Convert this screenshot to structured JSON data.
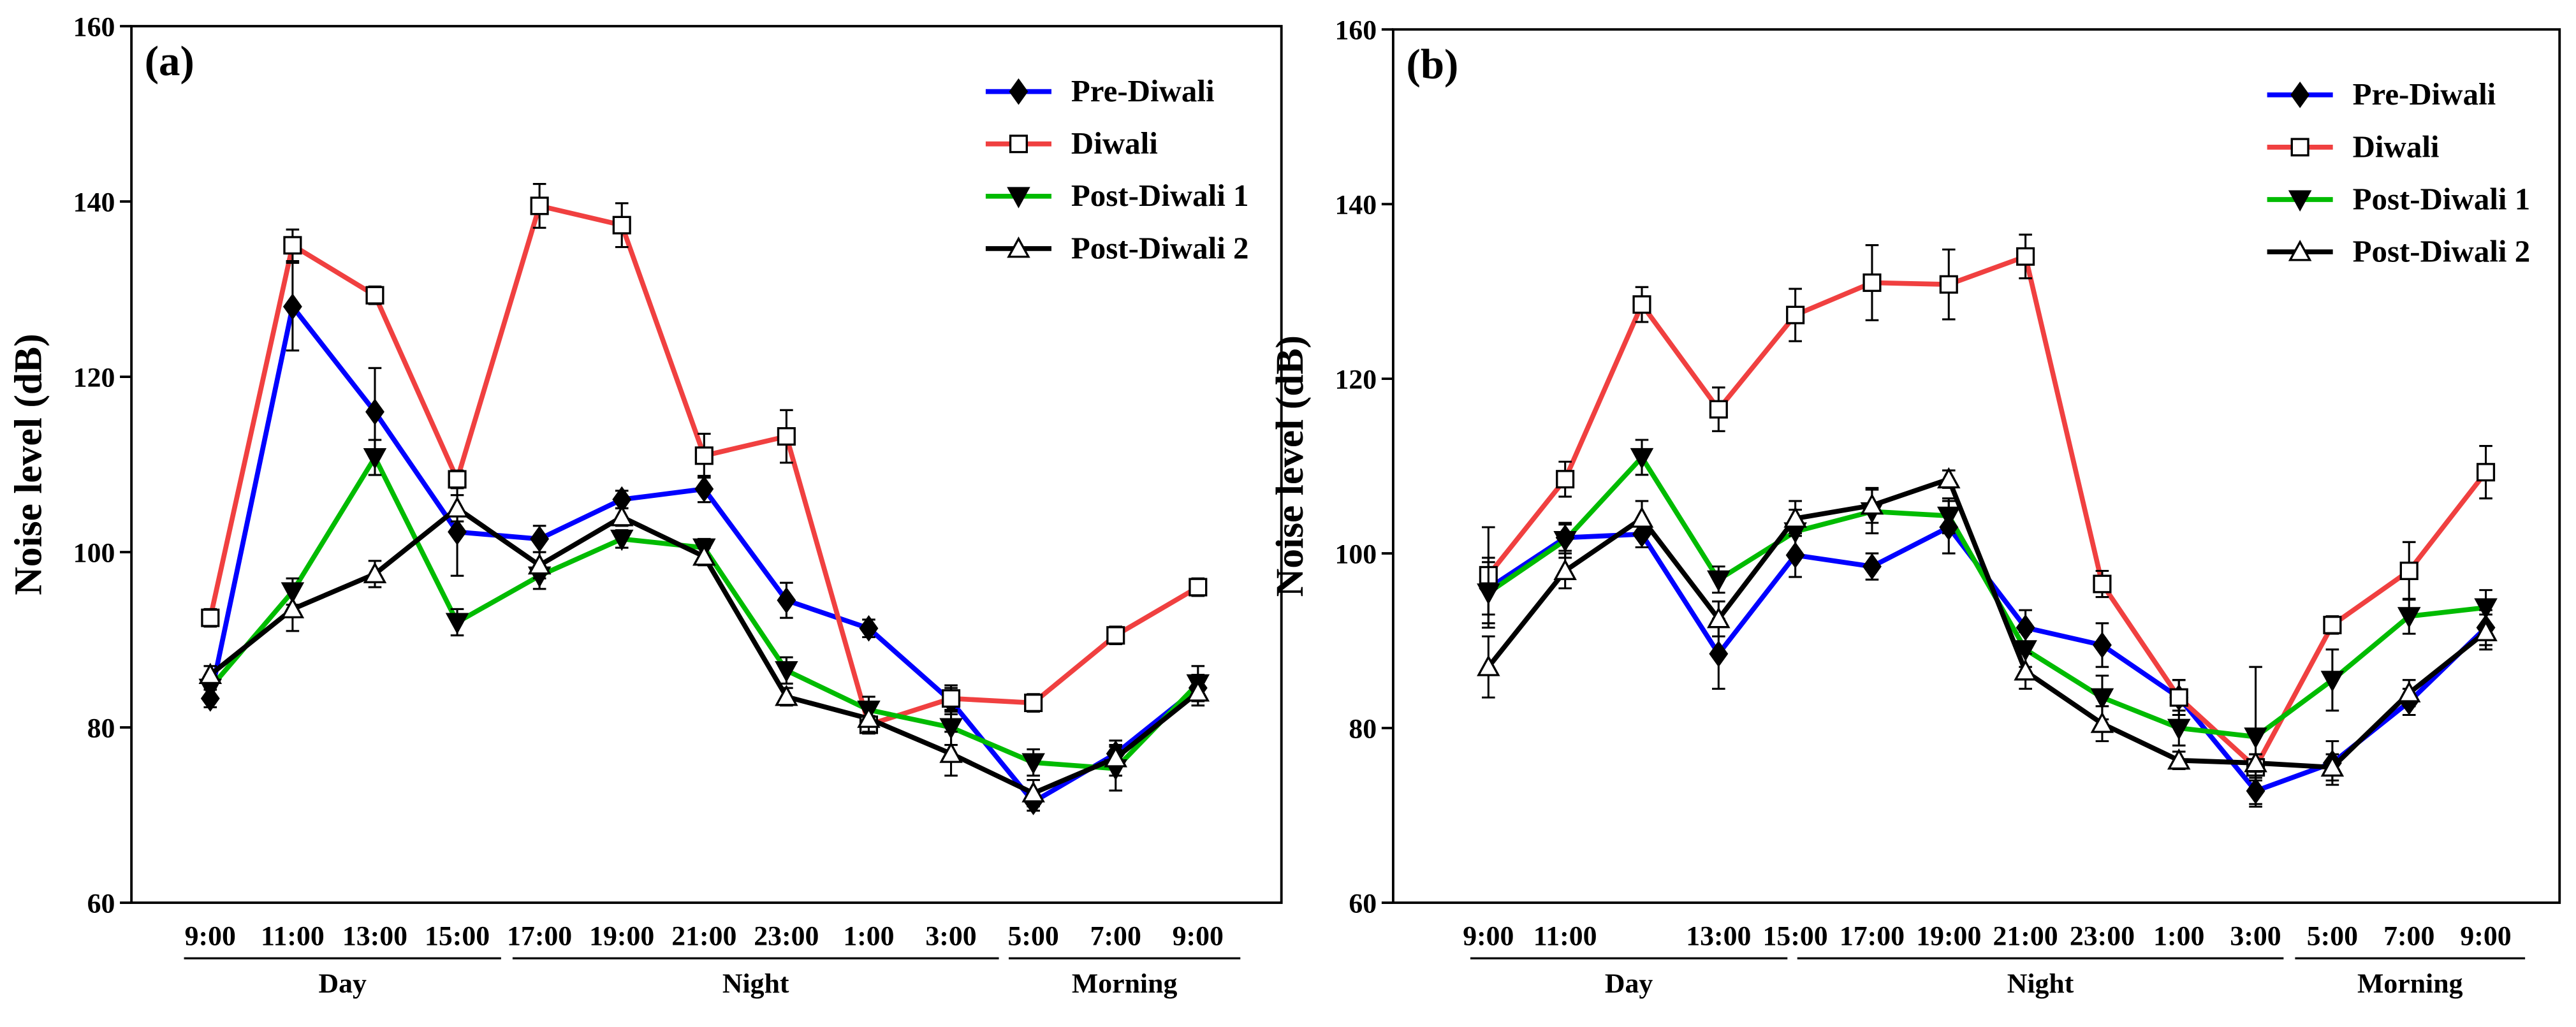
{
  "chart_data": [
    {
      "type": "line",
      "title": "(a)",
      "ylabel": "Noise level (dB)",
      "categories": [
        "9:00",
        "11:00",
        "13:00",
        "15:00",
        "17:00",
        "19:00",
        "21:00",
        "23:00",
        "1:00",
        "3:00",
        "5:00",
        "7:00",
        "9:00"
      ],
      "groups": [
        "Day",
        "Night",
        "Morning"
      ],
      "ylim": [
        60,
        160
      ],
      "yticks": [
        60,
        80,
        100,
        120,
        140,
        160
      ],
      "legend": "upper right",
      "series": [
        {
          "name": "Pre-Diwali",
          "color": "#0000ff",
          "marker": "diamond",
          "values": [
            83.3,
            128,
            116,
            102.3,
            101.5,
            106,
            107.2,
            94.5,
            91.3,
            83,
            71.5,
            77,
            84.5
          ],
          "errors": [
            1,
            5,
            5,
            5,
            1.5,
            1,
            1.5,
            2,
            1,
            1.5,
            1,
            1,
            1.5
          ]
        },
        {
          "name": "Diwali",
          "color": "#f04040",
          "marker": "square",
          "values": [
            92.5,
            135,
            129.3,
            108.3,
            139.5,
            137.3,
            111,
            113.2,
            80.3,
            83.3,
            82.8,
            90.5,
            96
          ],
          "errors": [
            1,
            1.8,
            1,
            1,
            2.5,
            2.5,
            2.5,
            3,
            1,
            1.5,
            1,
            1,
            1
          ]
        },
        {
          "name": "Post-Diwali 1",
          "color": "#00bb00",
          "marker": "tridown",
          "values": [
            84.5,
            95.5,
            110.8,
            92,
            97.3,
            101.5,
            100.5,
            86.5,
            82,
            80,
            76,
            75.3,
            85
          ],
          "errors": [
            1,
            1.5,
            2,
            1.5,
            1.5,
            1,
            1,
            1.5,
            1.5,
            2,
            1.5,
            2.5,
            2
          ]
        },
        {
          "name": "Post-Diwali 2",
          "color": "#000000",
          "marker": "triup",
          "values": [
            86,
            93.5,
            97.5,
            105,
            98.5,
            104,
            99.5,
            83.5,
            81,
            77,
            72.5,
            76.5,
            84
          ],
          "errors": [
            1,
            2.5,
            1.5,
            1.5,
            1.5,
            1,
            1,
            1,
            1.5,
            2.5,
            1.5,
            2,
            1.5
          ]
        }
      ]
    },
    {
      "type": "line",
      "title": "(b)",
      "ylabel": "Noise level (dB)",
      "categories": [
        "9:00",
        "11:00",
        null,
        "13:00",
        "15:00",
        "17:00",
        "19:00",
        "21:00",
        "23:00",
        "1:00",
        "3:00",
        "5:00",
        "7:00",
        "9:00"
      ],
      "groups": [
        "Day",
        "Night",
        "Morning"
      ],
      "ylim": [
        60,
        160
      ],
      "yticks": [
        60,
        80,
        100,
        120,
        140,
        160
      ],
      "legend": "upper right",
      "series": [
        {
          "name": "Pre-Diwali",
          "color": "#0000ff",
          "marker": "diamond",
          "values": [
            96,
            101.8,
            102.2,
            88.5,
            99.8,
            98.5,
            103,
            91.5,
            89.5,
            83.5,
            72.8,
            76,
            83,
            91.5
          ],
          "errors": [
            3,
            1.5,
            1.5,
            4,
            2.5,
            1.5,
            3,
            2,
            2.5,
            2,
            1.5,
            2.5,
            1.5,
            2
          ]
        },
        {
          "name": "Diwali",
          "color": "#f04040",
          "marker": "square",
          "values": [
            97.5,
            108.5,
            128.5,
            116.5,
            127.3,
            131,
            130.8,
            134,
            96.5,
            83.5,
            75.5,
            91.8,
            98,
            109.3
          ],
          "errors": [
            5.5,
            2,
            2,
            2.5,
            3,
            4.3,
            4,
            2.5,
            1.5,
            2,
            1.5,
            1,
            3.3,
            3
          ]
        },
        {
          "name": "Post-Diwali 1",
          "color": "#00bb00",
          "marker": "tridown",
          "values": [
            95.5,
            101.5,
            111,
            97,
            102.5,
            104.8,
            104.3,
            89,
            83.5,
            80,
            79,
            85.5,
            92.8,
            93.8
          ],
          "errors": [
            4,
            2,
            2,
            1.5,
            2.5,
            2.5,
            2,
            2,
            2.5,
            2,
            8,
            3.5,
            2,
            2
          ]
        },
        {
          "name": "Post-Diwali 2",
          "color": "#000000",
          "marker": "triup",
          "values": [
            87,
            98,
            104,
            92.5,
            104,
            105.5,
            108.5,
            86.5,
            80.5,
            76.3,
            76,
            75.5,
            84,
            91
          ],
          "errors": [
            3.5,
            2,
            2,
            2,
            2,
            2,
            1,
            2,
            2,
            1,
            1,
            1.5,
            1.5,
            2
          ]
        }
      ]
    }
  ]
}
